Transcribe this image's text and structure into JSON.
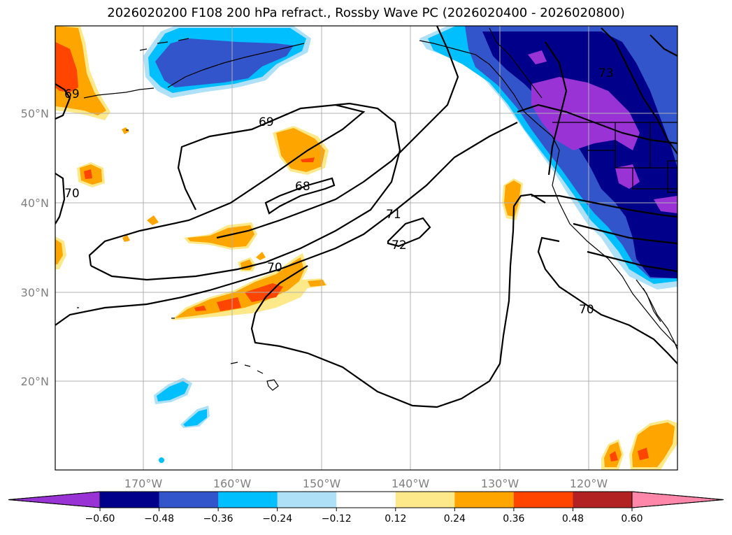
{
  "title": "2026020200 F108 200 hPa refract., Rossby Wave PC (2026020400 - 2026020800)",
  "lat_labels": [
    "50°N",
    "40°N",
    "30°N",
    "20°N"
  ],
  "lon_labels": [
    "170°W",
    "160°W",
    "150°W",
    "140°W",
    "130°W",
    "120°W"
  ],
  "contour_labels": [
    "69",
    "68",
    "70",
    "71",
    "72",
    "70",
    "70",
    "69",
    "73"
  ],
  "colorbar": {
    "ticks": [
      "−0.60",
      "−0.48",
      "−0.36",
      "−0.24",
      "−0.12",
      "0.12",
      "0.24",
      "0.36",
      "0.48",
      "0.60"
    ],
    "colors": [
      "#9933d6",
      "#00008b",
      "#3355cc",
      "#00bfff",
      "#aee0f8",
      "#ffffff",
      "#fde88a",
      "#ffa500",
      "#ff4500",
      "#b22222",
      "#ff88aa"
    ]
  }
}
